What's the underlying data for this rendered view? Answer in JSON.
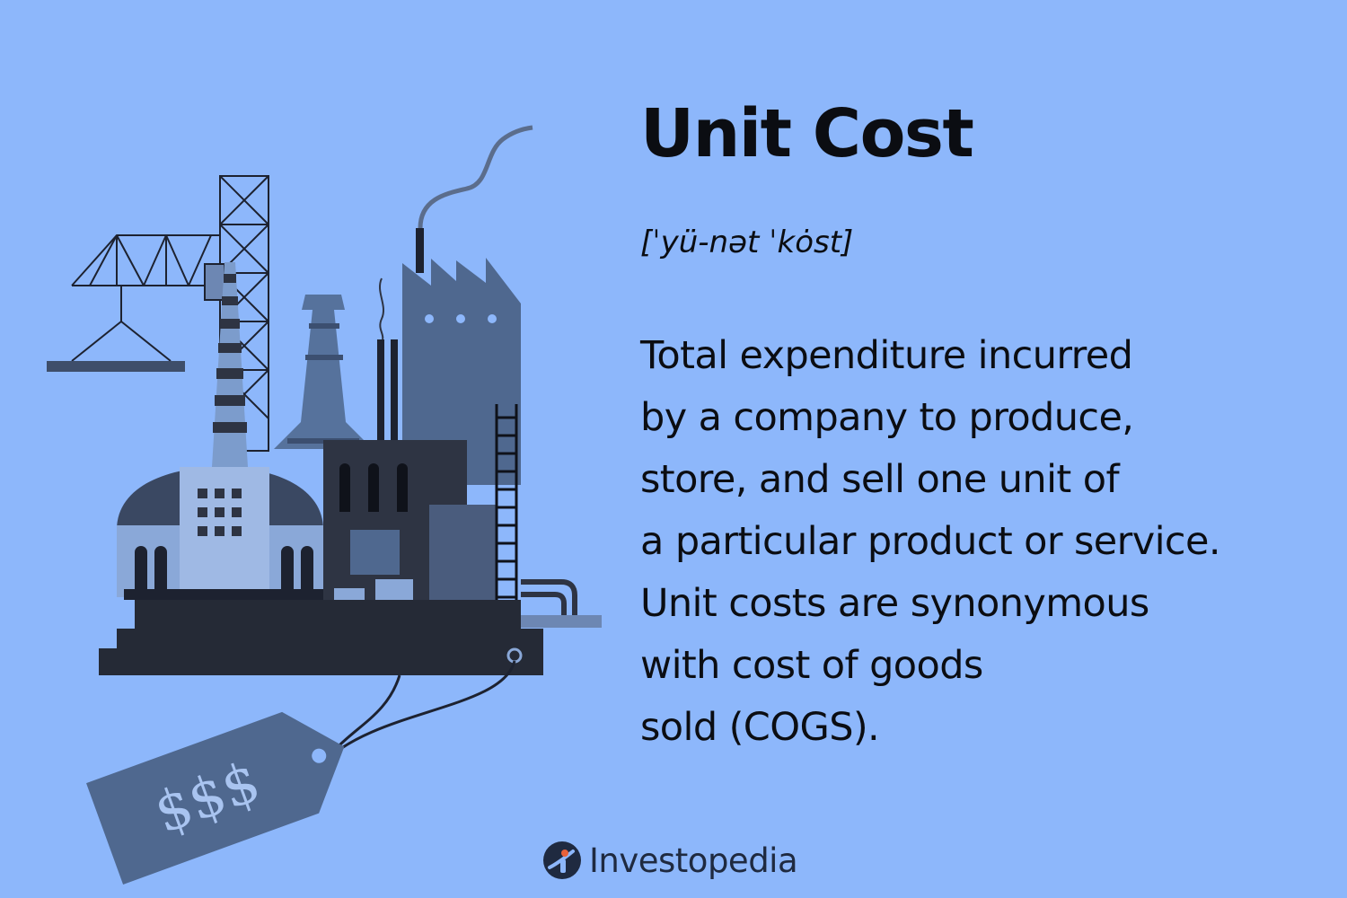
{
  "title": "Unit Cost",
  "pronunciation": "[ˈyü-nət ˈkȯst]",
  "definition": {
    "lines": [
      "Total expenditure incurred",
      "by a company to produce,",
      "store, and sell one unit of",
      "a particular product or service.",
      "Unit costs are synonymous",
      "with cost of goods",
      "sold (COGS)."
    ]
  },
  "price_tag": {
    "text": "$$$"
  },
  "brand": {
    "name": "Investopedia",
    "logo_icon": "investopedia-logo-icon"
  },
  "colors": {
    "background": "#8db7fb",
    "text": "#0b0d12",
    "illustration_dark": "#2e3443",
    "illustration_mid": "#4a6387",
    "illustration_light": "#8aa8d8"
  }
}
